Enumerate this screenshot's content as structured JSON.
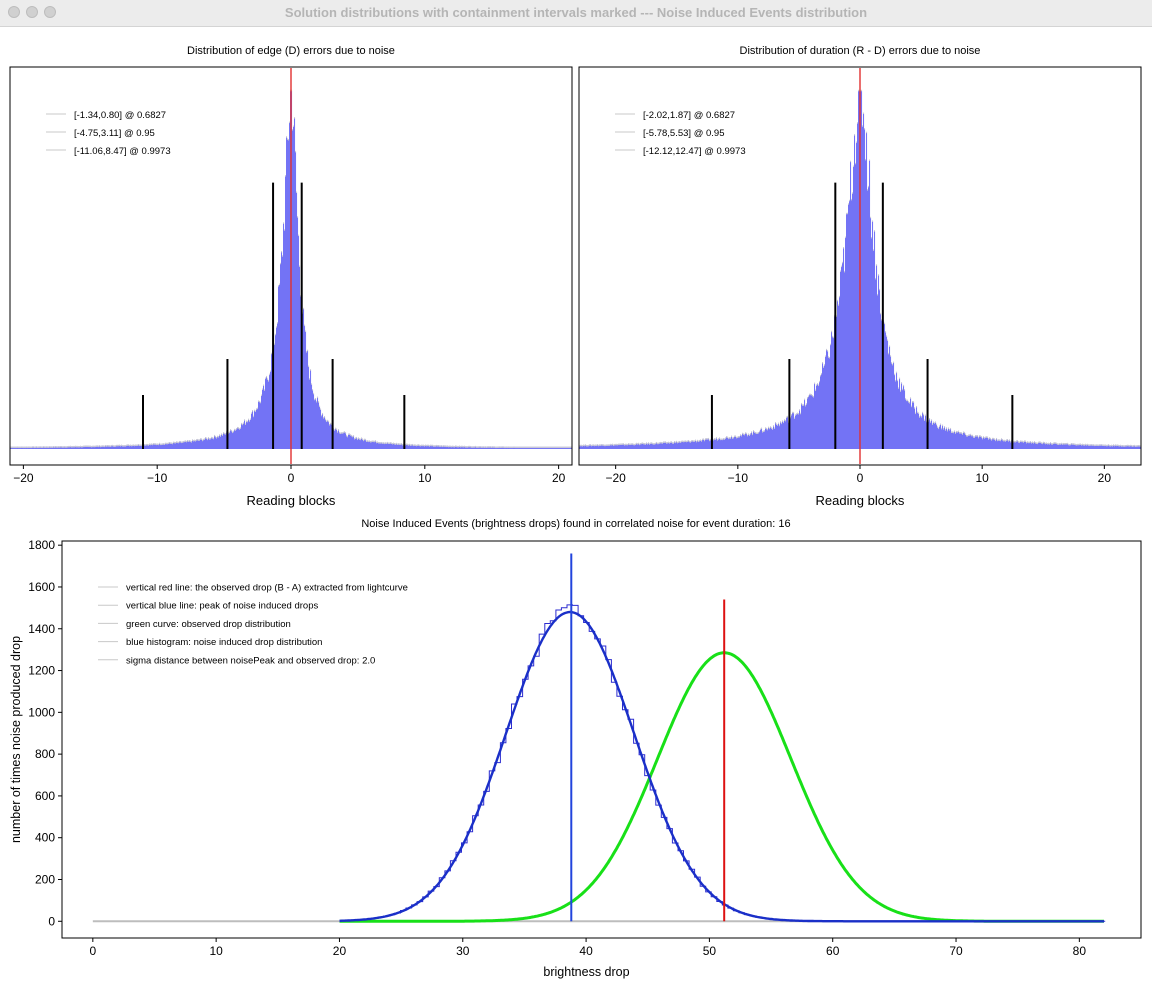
{
  "window": {
    "title": "Solution distributions with containment intervals marked --- Noise Induced Events distribution"
  },
  "colors": {
    "hist_fill": "#7373f5",
    "hist_edge": "#c8c8d8",
    "red_line": "#e03030",
    "bracket": "#000000",
    "noise_hist": "#2c2cd0",
    "noise_fit": "#1a2fc8",
    "green_curve": "#18e018",
    "blue_vline": "#2244dd",
    "red_vline": "#dd1111",
    "legend_line": "#c8c8c8"
  },
  "chart_data": [
    {
      "type": "bar",
      "title": "Distribution of edge (D) errors due to noise",
      "xlabel": "Reading blocks",
      "ylabel": "",
      "xlim": [
        -21,
        21
      ],
      "xticks": [
        -20,
        -10,
        0,
        10,
        20
      ],
      "ylim": [
        0,
        1.0
      ],
      "shape": {
        "center": 0.0,
        "scale_left": 1.25,
        "scale_right": 1.0,
        "peak": 1.0
      },
      "center_line": 0.0,
      "intervals": [
        {
          "label": "[-1.34,0.80] @ 0.6827",
          "low": -1.34,
          "high": 0.8,
          "level": 0.6827
        },
        {
          "label": "[-4.75,3.11] @ 0.95",
          "low": -4.75,
          "high": 3.11,
          "level": 0.95
        },
        {
          "label": "[-11.06,8.47] @ 0.9973",
          "low": -11.06,
          "high": 8.47,
          "level": 0.9973
        }
      ],
      "grid": false,
      "legend_position": "top-left"
    },
    {
      "type": "bar",
      "title": "Distribution of duration (R - D) errors due to noise",
      "xlabel": "Reading blocks",
      "ylabel": "",
      "xlim": [
        -23,
        23
      ],
      "xticks": [
        -20,
        -10,
        0,
        10,
        20
      ],
      "ylim": [
        0,
        1.0
      ],
      "shape": {
        "center": 0.0,
        "scale_left": 2.3,
        "scale_right": 2.1,
        "peak": 1.0
      },
      "center_line": 0.0,
      "intervals": [
        {
          "label": "[-2.02,1.87] @ 0.6827",
          "low": -2.02,
          "high": 1.87,
          "level": 0.6827
        },
        {
          "label": "[-5.78,5.53] @ 0.95",
          "low": -5.78,
          "high": 5.53,
          "level": 0.95
        },
        {
          "label": "[-12.12,12.47] @ 0.9973",
          "low": -12.12,
          "high": 12.47,
          "level": 0.9973
        }
      ],
      "grid": false,
      "legend_position": "top-left"
    },
    {
      "type": "line",
      "title": "Noise Induced Events (brightness drops) found in correlated noise for event duration: 16",
      "xlabel": "brightness drop",
      "ylabel": "number of times noise produced drop",
      "xlim": [
        -2.5,
        85
      ],
      "ylim": [
        -80,
        1820
      ],
      "xticks": [
        0,
        10,
        20,
        30,
        40,
        50,
        60,
        70,
        80
      ],
      "yticks": [
        0,
        200,
        400,
        600,
        800,
        1000,
        1200,
        1400,
        1600,
        1800
      ],
      "legend": [
        "vertical red line: the observed drop (B - A) extracted from lightcurve",
        "vertical blue line: peak of noise induced drops",
        "green curve: observed drop distribution",
        "blue histogram: noise induced drop distribution",
        "sigma distance between noisePeak and observed drop: 2.0"
      ],
      "series": [
        {
          "name": "blue histogram",
          "kind": "histogram",
          "mean": 38.7,
          "sigma": 5.2,
          "peak": 1480,
          "range": [
            20,
            82
          ]
        },
        {
          "name": "green curve",
          "kind": "gaussian",
          "mean": 51.2,
          "sigma": 5.4,
          "peak": 1285,
          "range": [
            20,
            82
          ]
        },
        {
          "name": "baseline",
          "kind": "flat",
          "value": 0,
          "range": [
            0,
            82
          ]
        }
      ],
      "blue_vline": {
        "x": 38.8,
        "ymax": 1760
      },
      "red_vline": {
        "x": 51.2,
        "ymax": 1540
      },
      "grid": false,
      "legend_position": "top-left"
    }
  ]
}
